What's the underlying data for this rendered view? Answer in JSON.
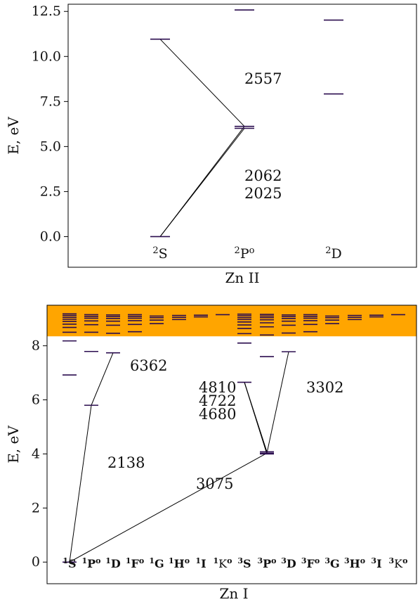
{
  "chart_data": [
    {
      "type": "energy-level-diagram",
      "title": "",
      "xlabel": "Zn II",
      "ylabel": "E, eV",
      "ylim": [
        -1.7,
        12.9
      ],
      "yticks": [
        "0.0",
        "2.5",
        "5.0",
        "7.5",
        "10.0",
        "12.5"
      ],
      "ytick_values": [
        0,
        2.5,
        5,
        7.5,
        10,
        12.5
      ],
      "terms": [
        {
          "label": "S",
          "superscript": "2",
          "odd": false,
          "levels": [
            0.0,
            10.96
          ]
        },
        {
          "label": "P",
          "superscript": "2",
          "odd": true,
          "levels": [
            6.01,
            6.12,
            12.58
          ]
        },
        {
          "label": "D",
          "superscript": "2",
          "odd": false,
          "levels": [
            7.92,
            12.02
          ]
        }
      ],
      "transitions": [
        {
          "from": [
            "S",
            0.0
          ],
          "to": [
            "P",
            6.01
          ]
        },
        {
          "from": [
            "S",
            0.0
          ],
          "to": [
            "P",
            6.12
          ]
        },
        {
          "from": [
            "S",
            10.96
          ],
          "to": [
            "P",
            6.12
          ]
        }
      ],
      "wavelength_labels": [
        "2557",
        "2062",
        "2025"
      ],
      "colors": {
        "level": "#2b0d4f",
        "line": "#000000"
      }
    },
    {
      "type": "energy-level-diagram",
      "title": "",
      "xlabel": "Zn I",
      "ylabel": "E, eV",
      "ylim": [
        -0.8,
        9.5
      ],
      "yticks": [
        "0",
        "2",
        "4",
        "6",
        "8"
      ],
      "ytick_values": [
        0,
        2,
        4,
        6,
        8
      ],
      "shaded_band": {
        "from": 8.35,
        "to": 9.5,
        "color": "#ffa500"
      },
      "terms": [
        {
          "label": "S",
          "superscript": "1",
          "odd": false,
          "levels": [
            0.0,
            6.92,
            8.18,
            8.5,
            8.68,
            8.8,
            8.9,
            8.98,
            9.05,
            9.12,
            9.18
          ]
        },
        {
          "label": "P",
          "superscript": "1",
          "odd": true,
          "levels": [
            5.8,
            7.79,
            8.5,
            8.78,
            8.92,
            9.02,
            9.09,
            9.15
          ]
        },
        {
          "label": "D",
          "superscript": "1",
          "odd": false,
          "levels": [
            7.74,
            8.46,
            8.76,
            8.91,
            9.01,
            9.08,
            9.14
          ]
        },
        {
          "label": "F",
          "superscript": "1",
          "odd": true,
          "levels": [
            8.52,
            8.79,
            8.93,
            9.02,
            9.09,
            9.15
          ]
        },
        {
          "label": "G",
          "superscript": "1",
          "odd": false,
          "levels": [
            8.82,
            8.95,
            9.04,
            9.1
          ]
        },
        {
          "label": "H",
          "superscript": "1",
          "odd": true,
          "levels": [
            8.97,
            9.05,
            9.12
          ]
        },
        {
          "label": "I",
          "superscript": "1",
          "odd": false,
          "levels": [
            9.07,
            9.13
          ]
        },
        {
          "label": "K",
          "superscript": "1",
          "odd": true,
          "levels": [
            9.15
          ]
        },
        {
          "label": "S",
          "superscript": "3",
          "odd": false,
          "levels": [
            6.65,
            8.1,
            8.45,
            8.64,
            8.77,
            8.88,
            8.97,
            9.04,
            9.11,
            9.17
          ]
        },
        {
          "label": "P",
          "superscript": "3",
          "odd": true,
          "levels": [
            4.0,
            4.03,
            4.08,
            7.6,
            8.4,
            8.7,
            8.85,
            8.96,
            9.04,
            9.1,
            9.16
          ]
        },
        {
          "label": "D",
          "superscript": "3",
          "odd": false,
          "levels": [
            7.78,
            8.47,
            8.76,
            8.91,
            9.01,
            9.08,
            9.14
          ]
        },
        {
          "label": "F",
          "superscript": "3",
          "odd": true,
          "levels": [
            8.52,
            8.79,
            8.93,
            9.02,
            9.09,
            9.15
          ]
        },
        {
          "label": "G",
          "superscript": "3",
          "odd": false,
          "levels": [
            8.82,
            8.95,
            9.04,
            9.1
          ]
        },
        {
          "label": "H",
          "superscript": "3",
          "odd": true,
          "levels": [
            8.97,
            9.05,
            9.12
          ]
        },
        {
          "label": "I",
          "superscript": "3",
          "odd": false,
          "levels": [
            9.07,
            9.13
          ]
        },
        {
          "label": "K",
          "superscript": "3",
          "odd": true,
          "levels": [
            9.15
          ]
        }
      ],
      "transitions": [
        {
          "from": [
            "1S",
            0.0
          ],
          "to": [
            "1P",
            5.8
          ]
        },
        {
          "from": [
            "1P",
            5.8
          ],
          "to": [
            "1D",
            7.74
          ]
        },
        {
          "from": [
            "1S",
            0.0
          ],
          "to": [
            "3P",
            4.03
          ]
        },
        {
          "from": [
            "3P",
            4.0
          ],
          "to": [
            "3S",
            6.65
          ]
        },
        {
          "from": [
            "3P",
            4.03
          ],
          "to": [
            "3S",
            6.65
          ]
        },
        {
          "from": [
            "3P",
            4.08
          ],
          "to": [
            "3S",
            6.65
          ]
        },
        {
          "from": [
            "3P",
            4.03
          ],
          "to": [
            "3D",
            7.78
          ]
        }
      ],
      "wavelength_labels": [
        "6362",
        "4810",
        "4722",
        "4680",
        "3302",
        "2138",
        "3075"
      ],
      "colors": {
        "level": "#2b0d4f",
        "line": "#000000"
      }
    }
  ]
}
